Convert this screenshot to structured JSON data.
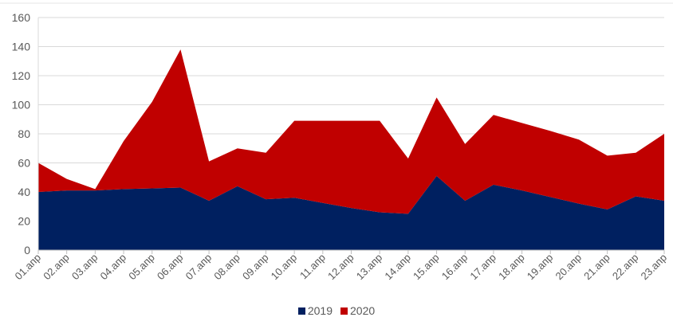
{
  "chart_data": {
    "type": "area",
    "stacked": true,
    "categories": [
      "01.апр",
      "02.апр",
      "03.апр",
      "04.апр",
      "05.апр",
      "06.апр",
      "07.апр",
      "08.апр",
      "09.апр",
      "10.апр",
      "11.апр",
      "12.апр",
      "13.апр",
      "14.апр",
      "15.апр",
      "16.апр",
      "17.апр",
      "18.апр",
      "19.апр",
      "20.апр",
      "21.апр",
      "22.апр",
      "23.апр"
    ],
    "series": [
      {
        "name": "2019",
        "color": "#002060",
        "values": [
          40,
          41,
          41,
          42,
          42.5,
          43,
          34,
          44,
          35,
          36,
          32.5,
          29,
          26,
          25,
          51,
          34,
          45,
          41,
          36.5,
          32,
          28,
          37,
          34
        ]
      },
      {
        "name": "2020",
        "color": "#C00000",
        "values": [
          20,
          8,
          1,
          33,
          59.5,
          95,
          27,
          26,
          32,
          53,
          56.5,
          60,
          63,
          38,
          54,
          39,
          48,
          46.5,
          45.5,
          44,
          37,
          30,
          46
        ]
      }
    ],
    "ylim": [
      0,
      160
    ],
    "yticks": [
      0,
      20,
      40,
      60,
      80,
      100,
      120,
      140,
      160
    ],
    "grid": true,
    "legend_position": "bottom"
  }
}
